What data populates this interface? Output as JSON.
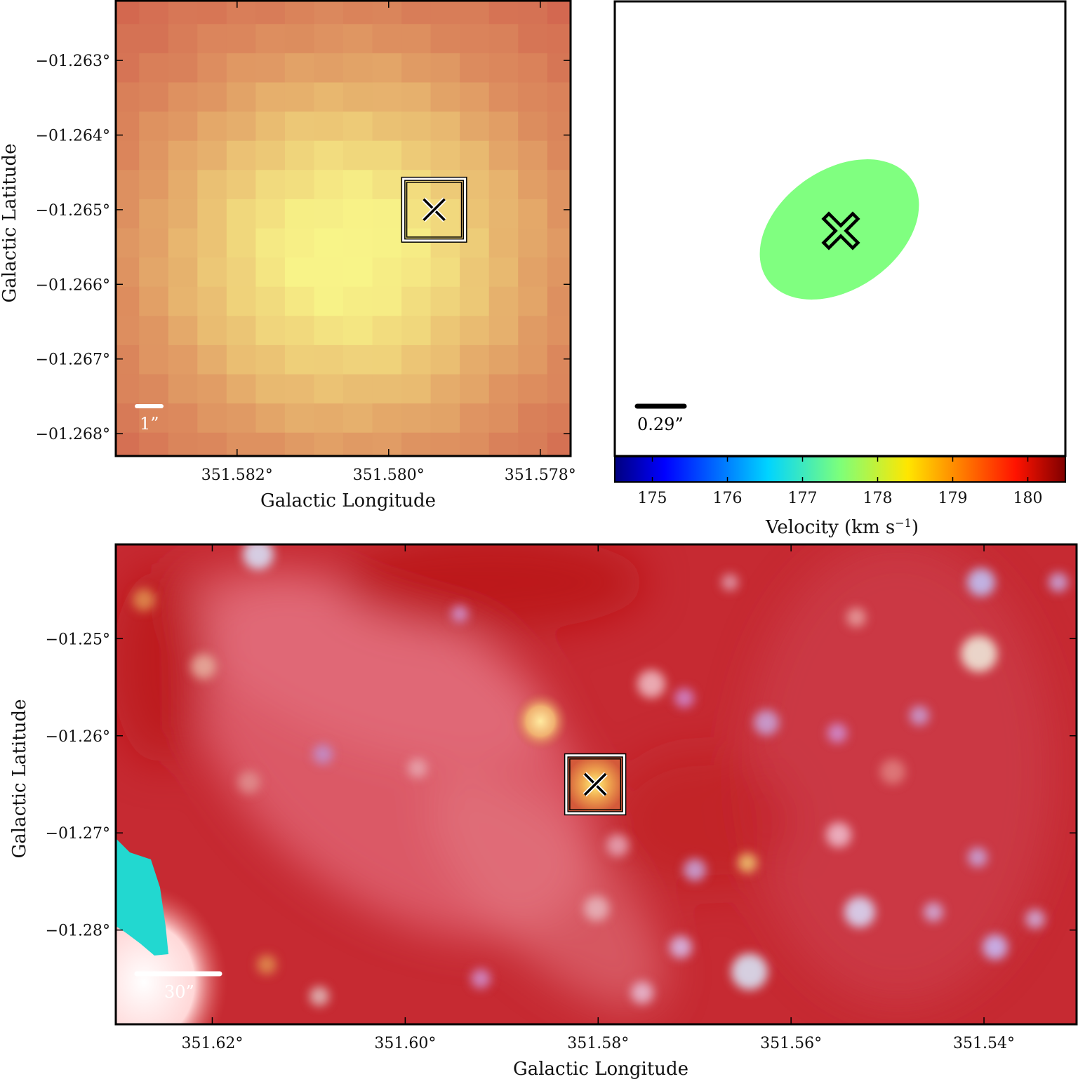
{
  "chart_data": [
    {
      "id": "zoom",
      "type": "heatmap",
      "xlabel": "Galactic Longitude",
      "ylabel": "Galactic Latitude",
      "xlim": [
        351.5836,
        351.5776
      ],
      "ylim": [
        -1.2683,
        -1.2622
      ],
      "xticks": [
        351.582,
        351.58,
        351.578
      ],
      "xtick_labels": [
        "351.582°",
        "351.580°",
        "351.578°"
      ],
      "yticks": [
        -1.263,
        -1.264,
        -1.265,
        -1.266,
        -1.267,
        -1.268
      ],
      "ytick_labels": [
        "−01.263°",
        "−01.264°",
        "−01.265°",
        "−01.266°",
        "−01.267°",
        "−01.268°"
      ],
      "scale_bar_label": "1”",
      "marker": {
        "l": 351.5794,
        "b": -1.265
      },
      "source_box_half_width": 0.0004
    },
    {
      "id": "velocity",
      "type": "heatmap",
      "scale_bar_label": "0.29”",
      "colorbar": {
        "label": "Velocity (km s",
        "label_superscript": "−1",
        "label_close": ")",
        "range": [
          174.5,
          180.5
        ],
        "ticks": [
          175,
          176,
          177,
          178,
          179,
          180
        ],
        "tick_labels": [
          "175",
          "176",
          "177",
          "178",
          "179",
          "180"
        ]
      },
      "ellipse_velocity": 177.6,
      "ellipse_rotation_deg": -35
    },
    {
      "id": "context",
      "type": "heatmap",
      "xlabel": "Galactic Longitude",
      "ylabel": "Galactic Latitude",
      "xlim": [
        351.63,
        351.5304
      ],
      "ylim": [
        -1.2897,
        -1.2403
      ],
      "xticks": [
        351.62,
        351.6,
        351.58,
        351.56,
        351.54
      ],
      "xtick_labels": [
        "351.62°",
        "351.60°",
        "351.58°",
        "351.56°",
        "351.54°"
      ],
      "yticks": [
        -1.25,
        -1.26,
        -1.27,
        -1.28
      ],
      "ytick_labels": [
        "−01.25°",
        "−01.26°",
        "−01.27°",
        "−01.28°"
      ],
      "scale_bar_label": "30”",
      "marker": {
        "l": 351.5803,
        "b": -1.265
      },
      "source_box_half_width": 0.003
    }
  ],
  "colors": {
    "zoom_peak": "#f8f488",
    "zoom_edge": "#cf5a4a",
    "ellipse": "#80ff80",
    "context_base": "#c62a32",
    "star": "#c8d0ff",
    "cyan_region": "#22d8d0",
    "frame": "#000000",
    "scale_bar_light": "#ffffff",
    "scale_bar_dark": "#000000"
  }
}
